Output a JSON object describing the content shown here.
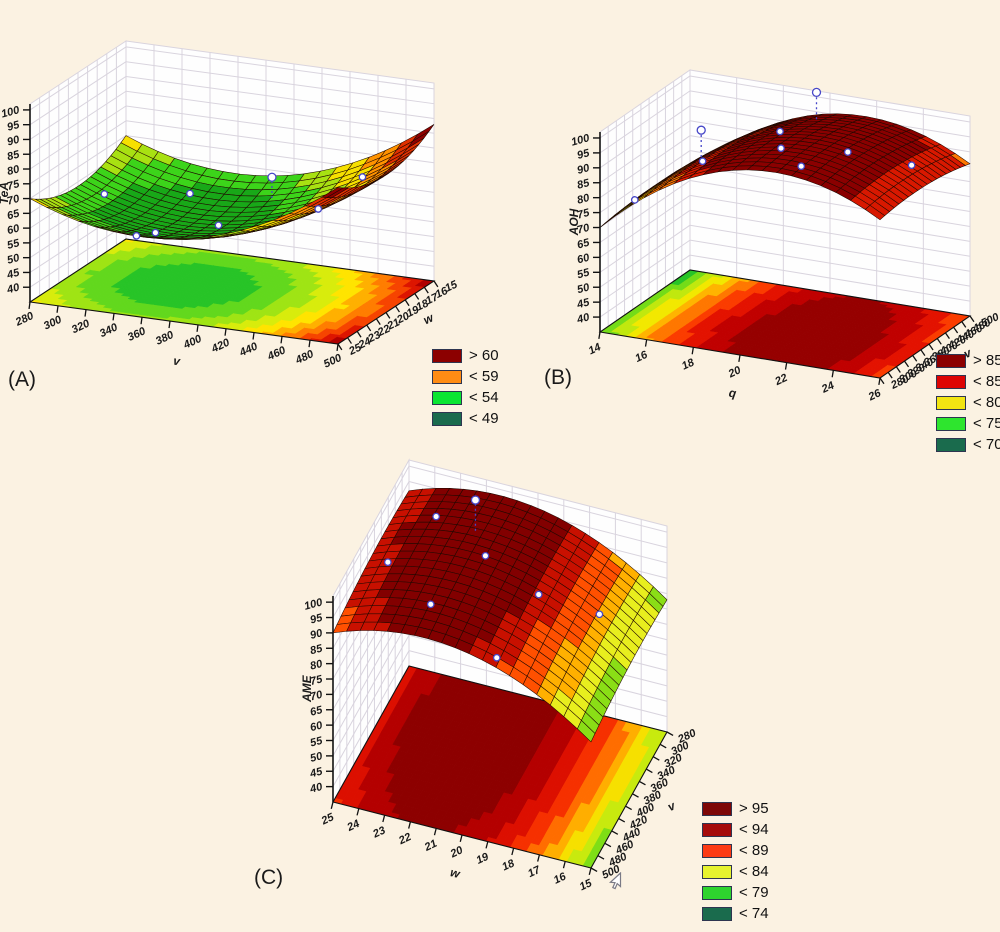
{
  "background": "#fbf2e2",
  "chart_data": {
    "type": "surface3d",
    "description": "Three 3D fitted response-surface plots with floor contour projections and observed data points",
    "panels": [
      {
        "letter": "(A)",
        "z_label": "TeA",
        "x_label": "v",
        "y_label": "w",
        "z_ticks": [
          40,
          45,
          50,
          55,
          60,
          65,
          70,
          75,
          80,
          85,
          90,
          95,
          100
        ],
        "x_ticks": [
          280,
          300,
          320,
          340,
          360,
          380,
          400,
          420,
          440,
          460,
          480,
          500
        ],
        "y_ticks": [
          25,
          24,
          23,
          22,
          21,
          20,
          19,
          18,
          17,
          16,
          15
        ],
        "x_range": [
          280,
          500
        ],
        "y_range": [
          15,
          25
        ],
        "z_range": [
          35,
          102
        ],
        "model_coeffs": [
          70,
          -44,
          62,
          -26,
          26,
          0
        ],
        "surface_colors": {
          "thresholds": [
            60,
            64,
            68,
            73,
            78,
            83
          ],
          "colors": [
            "#18a818",
            "#3cd41a",
            "#a8e112",
            "#f6e000",
            "#ff9200",
            "#e03000",
            "#8e0000"
          ]
        },
        "floor_contour": {
          "value_range": [
            55,
            88
          ],
          "colors": [
            "#27c427",
            "#62d81d",
            "#9fe414",
            "#d8ec0c",
            "#ffe400",
            "#ffb000",
            "#ff7d00",
            "#f64400",
            "#dd1500",
            "#b00000"
          ]
        },
        "points": [
          [
            0.27,
            0.8,
            0
          ],
          [
            0.53,
            0.82,
            7
          ],
          [
            0.83,
            0.8,
            0
          ],
          [
            0.07,
            0.55,
            0
          ],
          [
            0.45,
            0.52,
            0
          ],
          [
            0.78,
            0.5,
            0
          ],
          [
            0.32,
            0.28,
            0
          ],
          [
            0.33,
            0.05,
            0
          ]
        ],
        "legend": [
          {
            "color": "#8c0000",
            "label": "> 60"
          },
          {
            "color": "#ff8c14",
            "label": "< 59"
          },
          {
            "color": "#0ae532",
            "label": "< 54"
          },
          {
            "color": "#1a6b4d",
            "label": "< 49"
          }
        ]
      },
      {
        "letter": "(B)",
        "z_label": "AOH",
        "x_label": "q",
        "y_label": "v",
        "z_ticks": [
          40,
          45,
          50,
          55,
          60,
          65,
          70,
          75,
          80,
          85,
          90,
          95,
          100
        ],
        "x_ticks": [
          14,
          16,
          18,
          20,
          22,
          24,
          26
        ],
        "y_ticks": [
          280,
          300,
          320,
          340,
          360,
          380,
          400,
          420,
          440,
          460,
          480,
          500
        ],
        "x_range": [
          14,
          26
        ],
        "y_range": [
          280,
          500
        ],
        "z_range": [
          35,
          102
        ],
        "model_coeffs": [
          70,
          90,
          -72,
          6,
          -8,
          0
        ],
        "surface_colors": {
          "thresholds": [
            72,
            76,
            80,
            84,
            88,
            93
          ],
          "colors": [
            "#1fae1f",
            "#50d816",
            "#c8e60e",
            "#ffd000",
            "#ff7700",
            "#d81800",
            "#8a0000"
          ]
        },
        "floor_contour": {
          "value_range": [
            68,
            99
          ],
          "colors": [
            "#27c427",
            "#74dc18",
            "#c0e80e",
            "#f2e800",
            "#ffb400",
            "#ff7700",
            "#fb3c00",
            "#e31200",
            "#c00000",
            "#960000"
          ]
        },
        "points": [
          [
            0.13,
            0.72,
            9
          ],
          [
            0.5,
            0.85,
            9
          ],
          [
            0.45,
            0.6,
            0
          ],
          [
            0.27,
            0.3,
            0
          ],
          [
            0.55,
            0.3,
            0
          ],
          [
            0.68,
            0.12,
            0
          ],
          [
            0.75,
            0.42,
            0
          ],
          [
            0.92,
            0.6,
            0
          ],
          [
            0.06,
            0.2,
            0
          ]
        ],
        "legend": [
          {
            "color": "#8c0000",
            "label": "> 85"
          },
          {
            "color": "#dd0404",
            "label": "< 85"
          },
          {
            "color": "#f2e512",
            "label": "< 80"
          },
          {
            "color": "#2ee52e",
            "label": "< 75"
          },
          {
            "color": "#1a6b4d",
            "label": "< 70"
          }
        ]
      },
      {
        "letter": "(C)",
        "z_label": "AME",
        "x_label": "w",
        "y_label": "v",
        "z_ticks": [
          40,
          45,
          50,
          55,
          60,
          65,
          70,
          75,
          80,
          85,
          90,
          95,
          100
        ],
        "x_ticks": [
          25,
          24,
          23,
          22,
          21,
          20,
          19,
          18,
          17,
          16,
          15
        ],
        "y_ticks": [
          500,
          480,
          460,
          440,
          420,
          400,
          380,
          360,
          340,
          320,
          300,
          280
        ],
        "x_range": [
          15,
          25
        ],
        "y_range": [
          280,
          500
        ],
        "z_range": [
          35,
          102
        ],
        "model_coeffs": [
          90,
          34,
          -48,
          8,
          -6,
          0
        ],
        "surface_colors": {
          "thresholds": [
            77,
            80,
            84,
            88,
            92,
            95
          ],
          "colors": [
            "#22c822",
            "#8ade16",
            "#e8ee1e",
            "#ffb000",
            "#ff5000",
            "#c81000",
            "#820000"
          ]
        },
        "floor_contour": {
          "value_range": [
            74,
            98
          ],
          "colors": [
            "#2ad42a",
            "#7ede16",
            "#c8ea0e",
            "#f6e000",
            "#ffae00",
            "#ff6d00",
            "#f63000",
            "#dc0f00",
            "#b40000",
            "#8d0000"
          ]
        },
        "points": [
          [
            0.34,
            0.72,
            10
          ],
          [
            0.17,
            0.78,
            0
          ],
          [
            0.08,
            0.45,
            0
          ],
          [
            0.42,
            0.58,
            0
          ],
          [
            0.32,
            0.2,
            0
          ],
          [
            0.65,
            0.5,
            0
          ],
          [
            0.85,
            0.62,
            0
          ],
          [
            0.62,
            0.05,
            0
          ]
        ],
        "legend": [
          {
            "color": "#7d0707",
            "label": "> 95"
          },
          {
            "color": "#a50b0b",
            "label": "< 94"
          },
          {
            "color": "#fd3a14",
            "label": "< 89"
          },
          {
            "color": "#e6f22e",
            "label": "< 84"
          },
          {
            "color": "#2ed42e",
            "label": "< 79"
          },
          {
            "color": "#1a6b4d",
            "label": "< 74"
          }
        ]
      }
    ],
    "style": {
      "wall_fill": "#fefefe",
      "wall_grid": "#d9d4de",
      "axis_color": "#111111",
      "marker_stroke": "#4646c8",
      "marker_fill": "#ffffff"
    }
  }
}
